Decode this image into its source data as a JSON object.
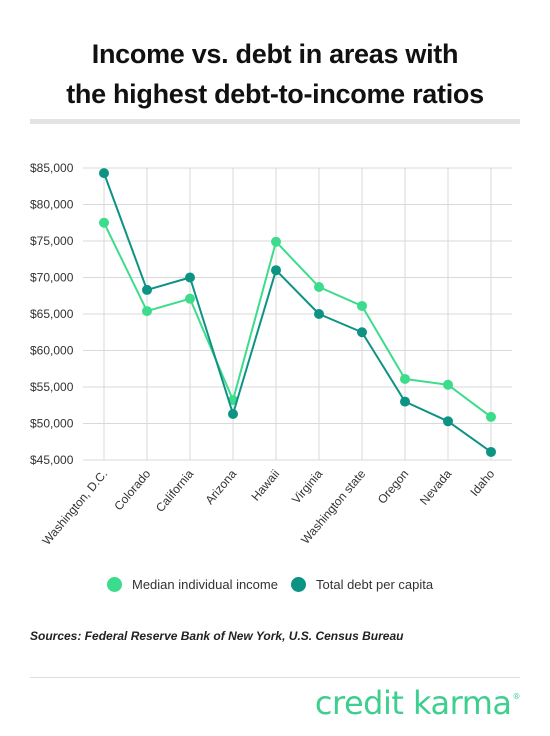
{
  "title_line1": "Income vs. debt in areas with",
  "title_line2": "the highest debt-to-income ratios",
  "sources": "Sources: Federal Reserve Bank of New York, U.S. Census Bureau",
  "brand": "credit karma",
  "brand_mark": "®",
  "colors": {
    "income": "#3ddc8c",
    "debt": "#0d9384",
    "grid": "#d9d9d9",
    "text": "#333333"
  },
  "chart_data": {
    "type": "line",
    "title": "Income vs. debt in areas with the highest debt-to-income ratios",
    "xlabel": "",
    "ylabel": "",
    "categories": [
      "Washington, D.C.",
      "Colorado",
      "California",
      "Arizona",
      "Hawaii",
      "Virginia",
      "Washington state",
      "Oregon",
      "Nevada",
      "Idaho"
    ],
    "y_ticks": [
      45000,
      50000,
      55000,
      60000,
      65000,
      70000,
      75000,
      80000,
      85000
    ],
    "y_tick_labels": [
      "$45,000",
      "$50,000",
      "$55,000",
      "$60,000",
      "$65,000",
      "$70,000",
      "$75,000",
      "$80,000",
      "$85,000"
    ],
    "ylim": [
      45000,
      85000
    ],
    "grid": true,
    "legend_position": "bottom",
    "series": [
      {
        "name": "Median individual income",
        "color": "#3ddc8c",
        "values": [
          77500,
          65400,
          67100,
          53200,
          74900,
          68700,
          66100,
          56100,
          55300,
          50900
        ]
      },
      {
        "name": "Total debt per capita",
        "color": "#0d9384",
        "values": [
          84300,
          68300,
          70000,
          51300,
          71000,
          65000,
          62500,
          53000,
          50300,
          46100
        ]
      }
    ]
  }
}
